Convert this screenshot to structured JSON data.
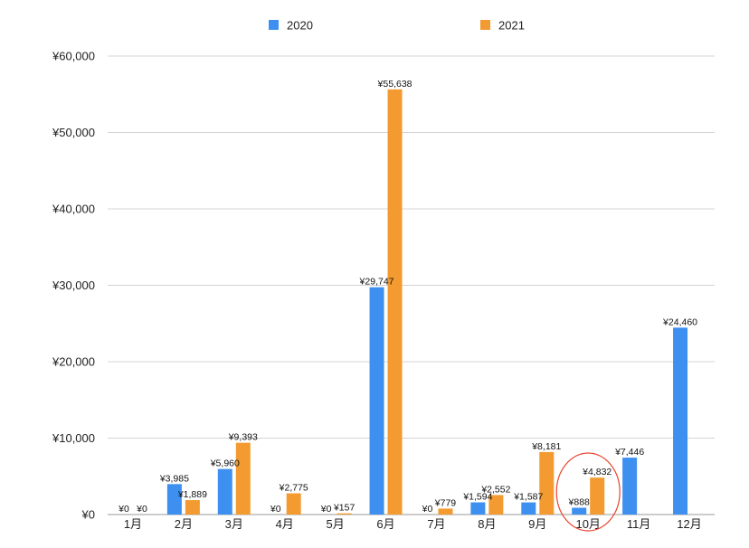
{
  "chart_data": {
    "type": "bar",
    "categories": [
      "1月",
      "2月",
      "3月",
      "4月",
      "5月",
      "6月",
      "7月",
      "8月",
      "9月",
      "10月",
      "11月",
      "12月"
    ],
    "series": [
      {
        "name": "2020",
        "color": "#3d8ff0",
        "values": [
          0,
          3985,
          5960,
          0,
          0,
          29747,
          0,
          1594,
          1587,
          888,
          7446,
          24460
        ],
        "labels": [
          "¥0",
          "¥3,985",
          "¥5,960",
          "¥0",
          "¥0",
          "¥29,747",
          "¥0",
          "¥1,594",
          "¥1,587",
          "¥888",
          "¥7,446",
          "¥24,460"
        ]
      },
      {
        "name": "2021",
        "color": "#f39a30",
        "values": [
          0,
          1889,
          9393,
          2775,
          157,
          55638,
          779,
          2552,
          8181,
          4832,
          null,
          null
        ],
        "labels": [
          "¥0",
          "¥1,889",
          "¥9,393",
          "¥2,775",
          "¥157",
          "¥55,638",
          "¥779",
          "¥2,552",
          "¥8,181",
          "¥4,832",
          null,
          null
        ]
      }
    ],
    "yticks": [
      "¥0",
      "¥10,000",
      "¥20,000",
      "¥30,000",
      "¥40,000",
      "¥50,000",
      "¥60,000"
    ],
    "ylim": [
      0,
      60000
    ],
    "grid": true,
    "legend": "top",
    "title": "",
    "xlabel": "",
    "ylabel": "",
    "annotation": {
      "type": "circle",
      "category": "10月",
      "color": "#e8442e"
    }
  }
}
